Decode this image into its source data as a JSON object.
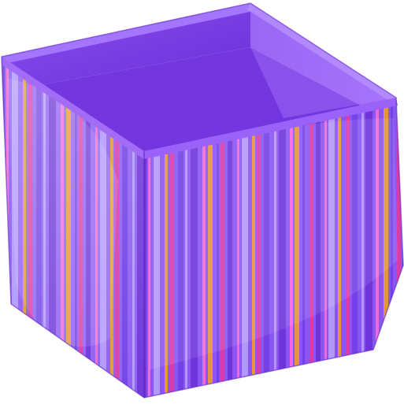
{
  "image": {
    "subject": "open-box-icon",
    "colors": {
      "back_inner": "#7a3fe0",
      "inner_right": "#9a62f5",
      "inner_left": "#8a4ff0",
      "rim": "#a26cf7",
      "left_base": "#8f5ff2",
      "front_base": "#8a55f2",
      "stripe_dark": "#6a2fd6",
      "stripe_pink": "#ff6fd6",
      "stripe_magenta": "#e8389a",
      "stripe_gold": "#f2a21a",
      "stripe_lavender": "#b9a3ff",
      "stripe_violet": "#6f3ee4"
    }
  }
}
